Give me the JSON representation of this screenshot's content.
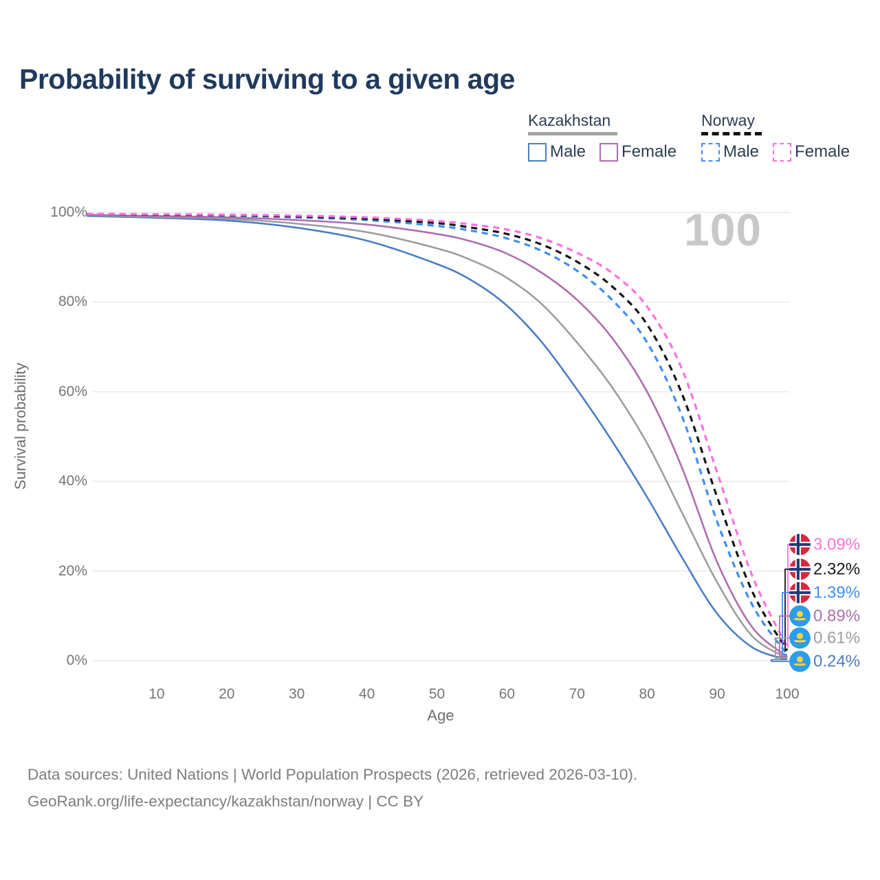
{
  "title": "Probability of surviving to a given age",
  "watermark_age": "100",
  "legend": {
    "groups": [
      {
        "name": "Kazakhstan",
        "line_style": "solid",
        "line_color": "#9d9d9d",
        "items": [
          {
            "label": "Male",
            "color": "#4a7dc3",
            "dashed": false
          },
          {
            "label": "Female",
            "color": "#ae6dae",
            "dashed": false
          }
        ]
      },
      {
        "name": "Norway",
        "line_style": "dashed",
        "line_color": "#141414",
        "items": [
          {
            "label": "Male",
            "color": "#3e8ef4",
            "dashed": true
          },
          {
            "label": "Female",
            "color": "#fb70e0",
            "dashed": true
          }
        ]
      }
    ]
  },
  "chart_data": {
    "type": "line",
    "title": "Probability of surviving to a given age",
    "xlabel": "Age",
    "ylabel": "Survival probability",
    "xlim": [
      0,
      100
    ],
    "ylim": [
      0,
      100
    ],
    "grid": "horizontal",
    "x_ticks": [
      10,
      20,
      30,
      40,
      50,
      60,
      70,
      80,
      90,
      100
    ],
    "y_ticks": [
      {
        "v": 0,
        "label": "0%"
      },
      {
        "v": 20,
        "label": "20%"
      },
      {
        "v": 40,
        "label": "40%"
      },
      {
        "v": 60,
        "label": "60%"
      },
      {
        "v": 80,
        "label": "80%"
      },
      {
        "v": 100,
        "label": "100%"
      }
    ],
    "x": [
      0,
      10,
      20,
      30,
      40,
      50,
      55,
      60,
      65,
      70,
      75,
      80,
      85,
      90,
      95,
      100
    ],
    "series": [
      {
        "name": "Norway Female",
        "country": "norway",
        "sex": "female",
        "color": "#fb70e0",
        "dashed": true,
        "end_label": "3.09%",
        "values": [
          99.7,
          99.6,
          99.5,
          99.3,
          98.9,
          98.1,
          97.3,
          96.2,
          94.2,
          91.0,
          86.5,
          79.0,
          65.0,
          42.0,
          19.0,
          3.09
        ]
      },
      {
        "name": "Norway Both sexes",
        "country": "norway",
        "sex": "all",
        "color": "#141414",
        "dashed": true,
        "end_label": "2.32%",
        "values": [
          99.7,
          99.5,
          99.4,
          99.1,
          98.6,
          97.6,
          96.6,
          95.2,
          92.8,
          89.0,
          83.5,
          75.0,
          59.5,
          36.5,
          15.5,
          2.32
        ]
      },
      {
        "name": "Norway Male",
        "country": "norway",
        "sex": "male",
        "color": "#3e8ef4",
        "dashed": true,
        "end_label": "1.39%",
        "values": [
          99.6,
          99.5,
          99.3,
          98.9,
          98.3,
          97.0,
          95.9,
          94.2,
          91.4,
          87.0,
          80.5,
          71.0,
          54.5,
          31.0,
          12.5,
          1.39
        ]
      },
      {
        "name": "Kazakhstan Female",
        "country": "kazakhstan",
        "sex": "female",
        "color": "#ae6dae",
        "dashed": false,
        "end_label": "0.89%",
        "values": [
          99.5,
          99.2,
          98.9,
          98.3,
          97.3,
          95.2,
          93.5,
          90.8,
          86.5,
          80.5,
          72.0,
          60.0,
          43.0,
          22.0,
          7.5,
          0.89
        ]
      },
      {
        "name": "Kazakhstan Both sexes",
        "country": "kazakhstan",
        "sex": "all",
        "color": "#9d9d9d",
        "dashed": false,
        "end_label": "0.61%",
        "values": [
          99.4,
          99.0,
          98.6,
          97.5,
          95.6,
          92.0,
          89.3,
          85.4,
          79.5,
          71.0,
          61.0,
          48.5,
          33.0,
          17.5,
          5.5,
          0.61
        ]
      },
      {
        "name": "Kazakhstan Male",
        "country": "kazakhstan",
        "sex": "male",
        "color": "#4a7dc3",
        "dashed": false,
        "end_label": "0.24%",
        "values": [
          99.2,
          98.8,
          98.2,
          96.6,
          93.7,
          88.5,
          84.8,
          79.2,
          71.0,
          60.5,
          49.0,
          36.5,
          23.0,
          10.5,
          3.0,
          0.24
        ]
      }
    ]
  },
  "flags": {
    "norway_red": "#d6293e",
    "norway_blue": "#1d3a7a",
    "kazakh_blue": "#2d9ceb",
    "kazakh_yellow": "#fcd53f"
  },
  "footer": {
    "line1": "Data sources: United Nations | World Population Prospects (2026, retrieved 2026-03-10).",
    "line2": "GeoRank.org/life-expectancy/kazakhstan/norway | CC BY"
  }
}
